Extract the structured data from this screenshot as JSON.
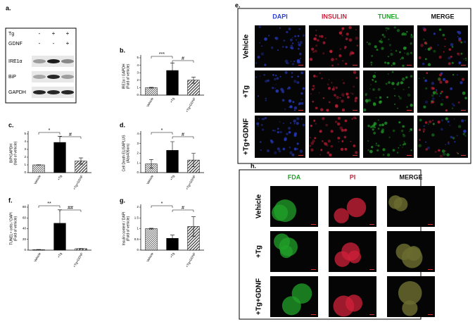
{
  "blot": {
    "label": "a.",
    "rows": [
      {
        "name": "Tg",
        "marks": [
          "-",
          "+",
          "+"
        ]
      },
      {
        "name": "GDNF",
        "marks": [
          "-",
          "-",
          "+"
        ]
      }
    ],
    "bands": [
      "IRE1α",
      "BiP",
      "GAPDH"
    ]
  },
  "chart_data": [
    {
      "type": "bar",
      "label": "b.",
      "ylabel": [
        "IRE1α / GAPDH",
        "(Fold of vehicle)"
      ],
      "categories": [
        "Vehicle",
        "+Tg",
        "+Tg+GDNF"
      ],
      "values": [
        1,
        3.3,
        2.0
      ],
      "errors": [
        0.05,
        1.0,
        0.4
      ],
      "ylim": [
        0,
        5
      ],
      "yticks": [
        0,
        1,
        2,
        3,
        4,
        5
      ],
      "annotations": [
        "***",
        "#"
      ]
    },
    {
      "type": "bar",
      "label": "c.",
      "ylabel": [
        "BiP/GAPDH",
        "(fold of vehicle)"
      ],
      "categories": [
        "Vehicle",
        "+Tg",
        "+Tg+GDNF"
      ],
      "values": [
        1,
        3.9,
        1.5
      ],
      "errors": [
        0.02,
        0.8,
        0.4
      ],
      "ylim": [
        0,
        5
      ],
      "yticks": [
        0,
        1,
        2,
        3,
        4,
        5
      ],
      "annotations": [
        "*",
        "#"
      ]
    },
    {
      "type": "bar",
      "label": "d.",
      "ylabel": [
        "Cell Death ELISAPLUS",
        "(Abs405nm)"
      ],
      "categories": [
        "Vehicle",
        "+Tg",
        "+Tg+GDNF"
      ],
      "values": [
        0.9,
        2.3,
        1.3
      ],
      "errors": [
        0.45,
        0.9,
        0.7
      ],
      "ylim": [
        0,
        4
      ],
      "yticks": [
        0,
        1,
        2,
        3,
        4
      ],
      "annotations": [
        "*",
        "#"
      ]
    },
    {
      "type": "bar",
      "label": "f.",
      "ylabel": [
        "TUNEL+ cells / DAPI",
        "(Fold of vehicle)"
      ],
      "categories": [
        "Vehicle",
        "+Tg",
        "+Tg+GDNF"
      ],
      "values": [
        1,
        50,
        2.8
      ],
      "errors": [
        0.3,
        25,
        0.3
      ],
      "ylim": [
        0,
        80
      ],
      "yticks": [
        0,
        20,
        40,
        60,
        80
      ],
      "annotations": [
        "**",
        "##"
      ]
    },
    {
      "type": "bar",
      "label": "g.",
      "ylabel": [
        "Insulin content / DAPI",
        "(Fold of vehicle)"
      ],
      "categories": [
        "Vehicle",
        "+Tg",
        "+Tg+GDNF"
      ],
      "values": [
        1,
        0.55,
        1.1
      ],
      "errors": [
        0.02,
        0.15,
        0.45
      ],
      "ylim": [
        0,
        2
      ],
      "yticks": [
        0,
        0.5,
        1,
        1.5,
        2
      ],
      "annotations": [
        "*",
        "#"
      ]
    }
  ],
  "panel_e": {
    "label": "e.",
    "columns": [
      {
        "name": "DAPI",
        "color": "#2b3fd1"
      },
      {
        "name": "INSULIN",
        "color": "#d0203a"
      },
      {
        "name": "TUNEL",
        "color": "#22a22a"
      },
      {
        "name": "MERGE",
        "color": "#111111"
      }
    ],
    "rows": [
      "Vehicle",
      "+Tg",
      "+Tg+GDNF"
    ]
  },
  "panel_h": {
    "label": "h.",
    "columns": [
      {
        "name": "FDA",
        "color": "#22a22a"
      },
      {
        "name": "PI",
        "color": "#d0203a"
      },
      {
        "name": "MERGE",
        "color": "#111111"
      }
    ],
    "rows": [
      "Vehicle",
      "+Tg",
      "+Tg+GDNF"
    ]
  }
}
